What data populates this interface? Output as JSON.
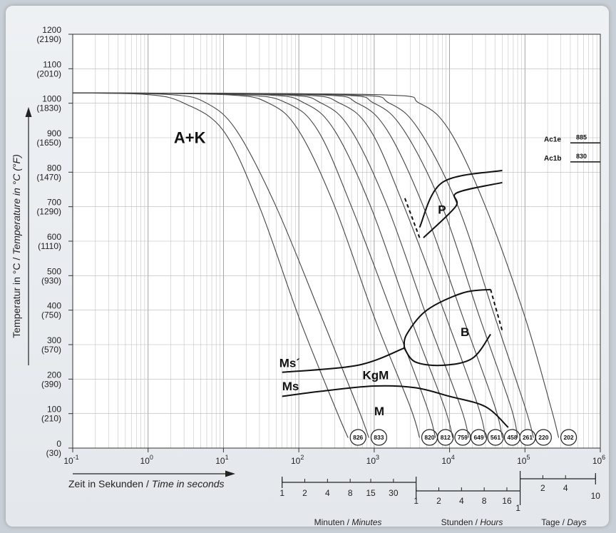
{
  "chart_data": {
    "type": "line",
    "title": "",
    "xlabel": {
      "de": "Zeit in Sekunden",
      "sep": " / ",
      "en": "Time in seconds"
    },
    "ylabel": {
      "de": "Temperatur in °C",
      "sep": " / ",
      "en": "Temperature in °C (°F)"
    },
    "x_scale": "log",
    "xlim": [
      0.1,
      1000000
    ],
    "ylim": [
      0,
      1200
    ],
    "grid": true,
    "y_ticks": [
      {
        "c": "0",
        "f": "(30)"
      },
      {
        "c": "100",
        "f": "(210)"
      },
      {
        "c": "200",
        "f": "(390)"
      },
      {
        "c": "300",
        "f": "(570)"
      },
      {
        "c": "400",
        "f": "(750)"
      },
      {
        "c": "500",
        "f": "(930)"
      },
      {
        "c": "600",
        "f": "(1110)"
      },
      {
        "c": "700",
        "f": "(1290)"
      },
      {
        "c": "800",
        "f": "(1470)"
      },
      {
        "c": "900",
        "f": "(1650)"
      },
      {
        "c": "1000",
        "f": "(1830)"
      },
      {
        "c": "1100",
        "f": "(2010)"
      },
      {
        "c": "1200",
        "f": "(2190)"
      }
    ],
    "x_ticks": [
      {
        "base": "10",
        "exp": "-1"
      },
      {
        "base": "10",
        "exp": "0"
      },
      {
        "base": "10",
        "exp": "1"
      },
      {
        "base": "10",
        "exp": "2"
      },
      {
        "base": "10",
        "exp": "3"
      },
      {
        "base": "10",
        "exp": "4"
      },
      {
        "base": "10",
        "exp": "5"
      },
      {
        "base": "10",
        "exp": "6"
      }
    ],
    "series": [
      {
        "hardness": "826",
        "values": [
          [
            0.1,
            1030
          ],
          [
            1,
            1025
          ],
          [
            3,
            1000
          ],
          [
            10,
            920
          ],
          [
            30,
            700
          ],
          [
            100,
            380
          ],
          [
            300,
            120
          ],
          [
            450,
            30
          ]
        ]
      },
      {
        "hardness": "833",
        "values": [
          [
            0.1,
            1030
          ],
          [
            2,
            1025
          ],
          [
            6,
            1000
          ],
          [
            15,
            920
          ],
          [
            50,
            700
          ],
          [
            200,
            380
          ],
          [
            600,
            120
          ],
          [
            850,
            30
          ]
        ]
      },
      {
        "hardness": "820",
        "values": [
          [
            0.1,
            1030
          ],
          [
            10,
            1025
          ],
          [
            40,
            1000
          ],
          [
            100,
            920
          ],
          [
            300,
            700
          ],
          [
            1000,
            380
          ],
          [
            3000,
            120
          ],
          [
            4000,
            30
          ]
        ]
      },
      {
        "hardness": "812",
        "values": [
          [
            0.1,
            1030
          ],
          [
            15,
            1025
          ],
          [
            70,
            1000
          ],
          [
            180,
            920
          ],
          [
            500,
            700
          ],
          [
            1800,
            380
          ],
          [
            5000,
            120
          ],
          [
            6500,
            30
          ]
        ]
      },
      {
        "hardness": "759",
        "values": [
          [
            0.1,
            1030
          ],
          [
            30,
            1025
          ],
          [
            120,
            1000
          ],
          [
            300,
            920
          ],
          [
            900,
            700
          ],
          [
            3000,
            380
          ],
          [
            8500,
            120
          ],
          [
            11000,
            30
          ]
        ]
      },
      {
        "hardness": "649",
        "values": [
          [
            0.1,
            1030
          ],
          [
            50,
            1025
          ],
          [
            200,
            1000
          ],
          [
            500,
            920
          ],
          [
            1500,
            700
          ],
          [
            5000,
            380
          ],
          [
            14000,
            120
          ],
          [
            18000,
            30
          ]
        ]
      },
      {
        "hardness": "561",
        "values": [
          [
            0.1,
            1030
          ],
          [
            80,
            1025
          ],
          [
            350,
            1000
          ],
          [
            900,
            920
          ],
          [
            2500,
            700
          ],
          [
            9000,
            380
          ],
          [
            24000,
            120
          ],
          [
            30000,
            30
          ]
        ]
      },
      {
        "hardness": "458",
        "values": [
          [
            0.1,
            1030
          ],
          [
            150,
            1025
          ],
          [
            600,
            1000
          ],
          [
            1500,
            920
          ],
          [
            4500,
            700
          ],
          [
            15000,
            380
          ],
          [
            40000,
            120
          ],
          [
            50000,
            30
          ]
        ]
      },
      {
        "hardness": "261",
        "values": [
          [
            0.1,
            1030
          ],
          [
            250,
            1025
          ],
          [
            1000,
            1000
          ],
          [
            2500,
            920
          ],
          [
            8000,
            700
          ],
          [
            25000,
            380
          ],
          [
            65000,
            120
          ],
          [
            80000,
            30
          ]
        ]
      },
      {
        "hardness": "220",
        "values": [
          [
            0.1,
            1030
          ],
          [
            400,
            1025
          ],
          [
            1600,
            1000
          ],
          [
            4000,
            920
          ],
          [
            13000,
            700
          ],
          [
            40000,
            380
          ],
          [
            100000,
            120
          ],
          [
            130000,
            30
          ]
        ]
      },
      {
        "hardness": "202",
        "values": [
          [
            0.1,
            1030
          ],
          [
            1000,
            1025
          ],
          [
            4000,
            1000
          ],
          [
            10000,
            920
          ],
          [
            30000,
            700
          ],
          [
            100000,
            380
          ],
          [
            220000,
            120
          ],
          [
            280000,
            30
          ]
        ]
      }
    ],
    "phase_boundaries": {
      "P_start": [
        [
          4000,
          640
        ],
        [
          8000,
          770
        ],
        [
          50000,
          805
        ]
      ],
      "P_finish": [
        [
          4500,
          610
        ],
        [
          12000,
          700
        ],
        [
          12500,
          740
        ],
        [
          50000,
          770
        ]
      ],
      "P_dashed": [
        [
          4000,
          610
        ],
        [
          2500,
          730
        ]
      ],
      "B_upper": [
        [
          2500,
          290
        ],
        [
          2700,
          330
        ],
        [
          5000,
          400
        ],
        [
          15000,
          450
        ],
        [
          35000,
          460
        ]
      ],
      "B_lower": [
        [
          2500,
          290
        ],
        [
          3500,
          250
        ],
        [
          8000,
          240
        ],
        [
          20000,
          260
        ],
        [
          35000,
          330
        ]
      ],
      "B_dashed": [
        [
          35000,
          460
        ],
        [
          50000,
          340
        ]
      ],
      "Ms_prime": [
        [
          60,
          220
        ],
        [
          600,
          240
        ],
        [
          2500,
          290
        ]
      ],
      "Ms": [
        [
          60,
          150
        ],
        [
          200,
          165
        ],
        [
          1000,
          180
        ],
        [
          3500,
          175
        ],
        [
          10000,
          150
        ],
        [
          30000,
          120
        ],
        [
          60000,
          60
        ]
      ]
    },
    "regions": [
      "A+K",
      "P",
      "B",
      "Ms´",
      "KgM",
      "Ms",
      "M"
    ],
    "ac_temperatures": [
      {
        "label": "Ac1e",
        "value": "885"
      },
      {
        "label": "Ac1b",
        "value": "830"
      }
    ],
    "time_scales": {
      "minutes": {
        "ticks": [
          "1",
          "2",
          "4",
          "8",
          "15",
          "30"
        ],
        "label_de": "Minuten",
        "sep": " / ",
        "label_en": "Minutes"
      },
      "hours": {
        "ticks": [
          "1",
          "2",
          "4",
          "8",
          "16"
        ],
        "label_de": "Stunden",
        "sep": " / ",
        "label_en": "Hours"
      },
      "days": {
        "ticks": [
          "1",
          "2",
          "4",
          "10"
        ],
        "label_de": "Tage",
        "sep": " / ",
        "label_en": "Days"
      }
    }
  }
}
